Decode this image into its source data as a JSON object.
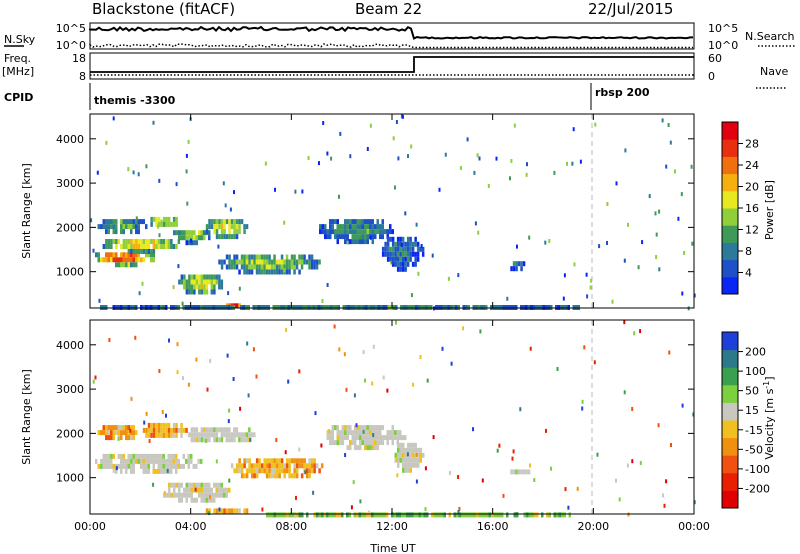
{
  "header": {
    "station": "Blackstone (fitACF)",
    "beam": "Beam 22",
    "date": "22/Jul/2015"
  },
  "panels": {
    "nsky": {
      "left_label": "N.Sky",
      "left_ticks": [
        "10^5",
        "10^0"
      ],
      "right_label": "N.Search",
      "right_ticks": [
        "10^5",
        "10^0"
      ]
    },
    "freq": {
      "left_label_top": "Freq.",
      "left_label_unit": "[MHz]",
      "left_ticks": [
        "18",
        "8"
      ],
      "right_label": "Nave",
      "right_ticks": [
        "60",
        "0"
      ]
    },
    "cpid": {
      "label": "CPID",
      "segments": [
        {
          "label": "themis -3300",
          "start_hour": 0
        },
        {
          "label": "rbsp 200",
          "start_hour": 20
        }
      ]
    }
  },
  "chart_data": [
    {
      "type": "heatmap",
      "name": "power",
      "ylabel": "Slant Range [km]",
      "xlabel": "",
      "ylim": [
        180,
        4560
      ],
      "yticks": [
        1000,
        2000,
        3000,
        4000
      ],
      "colorbar": {
        "label": "Power [dB]",
        "ticks": [
          "4",
          "8",
          "12",
          "16",
          "20",
          "24",
          "28"
        ],
        "range": [
          0,
          32
        ],
        "colors": [
          "#0a26f5",
          "#1e50c8",
          "#2c7a9a",
          "#3f9a5a",
          "#8fcf3a",
          "#e8e820",
          "#f5b010",
          "#f07010",
          "#e83010",
          "#e00010"
        ]
      },
      "blobs": [
        {
          "t0": 0.1,
          "t1": 2.6,
          "r0": 1200,
          "r1": 1550,
          "level": 0.85
        },
        {
          "t0": 0.4,
          "t1": 3.6,
          "r0": 1500,
          "r1": 1850,
          "level": 0.6
        },
        {
          "t0": 0.2,
          "t1": 2.2,
          "r0": 1900,
          "r1": 2300,
          "level": 0.35
        },
        {
          "t0": 2.2,
          "t1": 3.6,
          "r0": 2050,
          "r1": 2350,
          "level": 0.55
        },
        {
          "t0": 3.2,
          "t1": 4.8,
          "r0": 1700,
          "r1": 2050,
          "level": 0.5
        },
        {
          "t0": 3.4,
          "t1": 5.3,
          "r0": 550,
          "r1": 1050,
          "level": 0.55
        },
        {
          "t0": 4.5,
          "t1": 6.2,
          "r0": 1800,
          "r1": 2300,
          "level": 0.55
        },
        {
          "t0": 5.0,
          "t1": 9.2,
          "r0": 1000,
          "r1": 1500,
          "level": 0.45
        },
        {
          "t0": 9.0,
          "t1": 12.0,
          "r0": 1700,
          "r1": 2300,
          "level": 0.3
        },
        {
          "t0": 11.5,
          "t1": 13.2,
          "r0": 1100,
          "r1": 1900,
          "level": 0.25
        },
        {
          "t0": 16.6,
          "t1": 17.3,
          "r0": 1050,
          "r1": 1350,
          "level": 0.25
        },
        {
          "t0": 5.3,
          "t1": 6.0,
          "r0": 200,
          "r1": 400,
          "level": 0.9
        },
        {
          "t0": 0.0,
          "t1": 20.0,
          "r0": 180,
          "r1": 360,
          "level": 0.3
        }
      ]
    },
    {
      "type": "heatmap",
      "name": "velocity",
      "ylabel": "Slant Range [km]",
      "xlabel": "Time UT",
      "ylim": [
        180,
        4560
      ],
      "yticks": [
        1000,
        2000,
        3000,
        4000
      ],
      "xticks": [
        "00:00",
        "04:00",
        "08:00",
        "12:00",
        "16:00",
        "20:00",
        "00:00"
      ],
      "x_hours": [
        0,
        4,
        8,
        12,
        16,
        20,
        24
      ],
      "colorbar": {
        "label": "Velocity [m s^-1]",
        "ticks": [
          "200",
          "100",
          "50",
          "15",
          "-15",
          "-50",
          "-100",
          "-200"
        ],
        "colors": [
          "#1e3fd8",
          "#2a7a8a",
          "#3aa050",
          "#7cd040",
          "#c8c8c0",
          "#f0c020",
          "#f09010",
          "#f05010",
          "#e82000",
          "#e00000"
        ]
      },
      "blobs": [
        {
          "t0": 0.1,
          "t1": 4.4,
          "r0": 1150,
          "r1": 1650,
          "level": 0.45,
          "kind": "gray"
        },
        {
          "t0": 0.2,
          "t1": 1.8,
          "r0": 1850,
          "r1": 2300,
          "level": 0.6,
          "kind": "orange"
        },
        {
          "t0": 2.0,
          "t1": 3.8,
          "r0": 1900,
          "r1": 2350,
          "level": 0.65,
          "kind": "orange"
        },
        {
          "t0": 3.8,
          "t1": 6.5,
          "r0": 1800,
          "r1": 2250,
          "level": 0.45,
          "kind": "gray"
        },
        {
          "t0": 2.8,
          "t1": 5.5,
          "r0": 500,
          "r1": 1000,
          "level": 0.45,
          "kind": "gray"
        },
        {
          "t0": 5.5,
          "t1": 9.3,
          "r0": 1000,
          "r1": 1550,
          "level": 0.65,
          "kind": "orange"
        },
        {
          "t0": 9.2,
          "t1": 12.5,
          "r0": 1700,
          "r1": 2300,
          "level": 0.45,
          "kind": "gray"
        },
        {
          "t0": 12.0,
          "t1": 13.2,
          "r0": 1200,
          "r1": 1900,
          "level": 0.45,
          "kind": "gray"
        },
        {
          "t0": 16.6,
          "t1": 17.4,
          "r0": 1100,
          "r1": 1300,
          "level": 0.45,
          "kind": "gray"
        },
        {
          "t0": 4.5,
          "t1": 6.2,
          "r0": 200,
          "r1": 420,
          "level": 0.7,
          "kind": "orange"
        },
        {
          "t0": 6.0,
          "t1": 20.0,
          "r0": 180,
          "r1": 330,
          "level": 0.25,
          "kind": "green"
        }
      ]
    }
  ]
}
